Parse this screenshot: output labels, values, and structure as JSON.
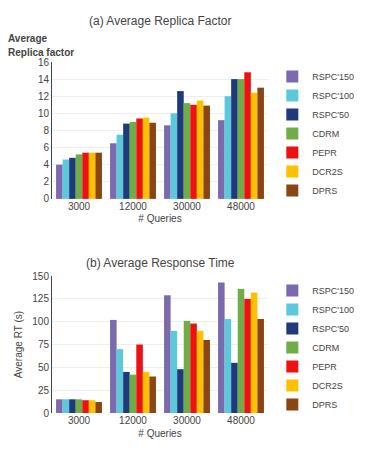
{
  "chart_data": [
    {
      "type": "bar",
      "title": "(a) Average Replica Factor",
      "annotations": [
        "Average",
        "Replica factor"
      ],
      "xlabel": "# Queries",
      "categories": [
        "3000",
        "12000",
        "30000",
        "48000"
      ],
      "series": [
        {
          "name": "RSPC'150",
          "color": "#7B6BAE",
          "values": [
            4.0,
            6.5,
            8.6,
            9.2
          ]
        },
        {
          "name": "RSPC'100",
          "color": "#5BC8DC",
          "values": [
            4.6,
            7.5,
            10.0,
            12.0
          ]
        },
        {
          "name": "RSPC'50",
          "color": "#1E3A7A",
          "values": [
            4.8,
            8.8,
            12.6,
            14.0
          ]
        },
        {
          "name": "CDRM",
          "color": "#70AD47",
          "values": [
            5.2,
            9.0,
            11.2,
            14.0
          ]
        },
        {
          "name": "PEPR",
          "color": "#EE1111",
          "values": [
            5.4,
            9.4,
            11.0,
            14.8
          ]
        },
        {
          "name": "DCR2S",
          "color": "#FFC000",
          "values": [
            5.4,
            9.5,
            11.5,
            12.4
          ]
        },
        {
          "name": "DPRS",
          "color": "#8B4513",
          "values": [
            5.4,
            8.9,
            10.9,
            13.0
          ]
        }
      ],
      "ylim": [
        0,
        16
      ],
      "yticks": [
        0,
        2,
        4,
        6,
        8,
        10,
        12,
        14,
        16
      ],
      "grid": true,
      "legend": "right"
    },
    {
      "type": "bar",
      "title": "(b) Average Response Time",
      "ylabel": "Average RT (s)",
      "xlabel": "# Queries",
      "categories": [
        "3000",
        "12000",
        "30000",
        "48000"
      ],
      "series": [
        {
          "name": "RSPC'150",
          "color": "#7B6BAE",
          "values": [
            15,
            102,
            129,
            143
          ]
        },
        {
          "name": "RSPC'100",
          "color": "#5BC8DC",
          "values": [
            15,
            70,
            90,
            103
          ]
        },
        {
          "name": "RSPC'50",
          "color": "#1E3A7A",
          "values": [
            15,
            45,
            48,
            55
          ]
        },
        {
          "name": "CDRM",
          "color": "#70AD47",
          "values": [
            15,
            42,
            101,
            136
          ]
        },
        {
          "name": "PEPR",
          "color": "#EE1111",
          "values": [
            14,
            75,
            98,
            125
          ]
        },
        {
          "name": "DCR2S",
          "color": "#FFC000",
          "values": [
            14,
            45,
            90,
            132
          ]
        },
        {
          "name": "DPRS",
          "color": "#8B4513",
          "values": [
            12,
            40,
            80,
            103
          ]
        }
      ],
      "ylim": [
        0,
        150
      ],
      "yticks": [
        0,
        25,
        50,
        75,
        100,
        125,
        150
      ],
      "grid": true,
      "legend": "right"
    }
  ]
}
